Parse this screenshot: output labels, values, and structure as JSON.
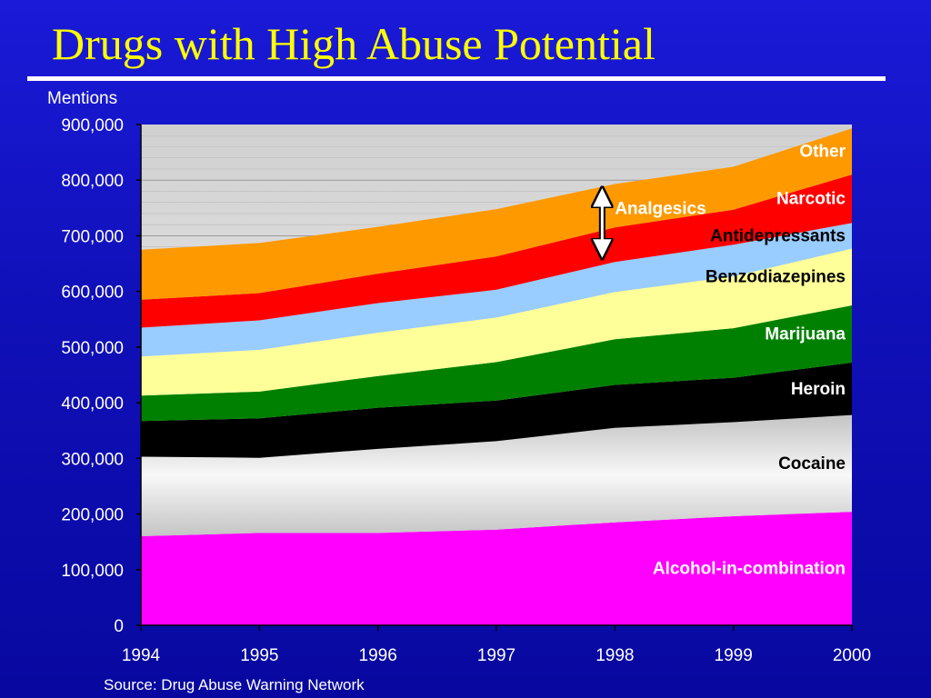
{
  "title": "Drugs with High Abuse Potential",
  "source": "Source:  Drug Abuse Warning Network",
  "chart_data": {
    "type": "area",
    "stacked": true,
    "title": "Drugs with High Abuse Potential",
    "ylabel": "Mentions",
    "xlabel": "",
    "ylim": [
      0,
      900000
    ],
    "yticks": [
      0,
      100000,
      200000,
      300000,
      400000,
      500000,
      600000,
      700000,
      800000,
      900000
    ],
    "ytick_labels": [
      "0",
      "100,000",
      "200,000",
      "300,000",
      "400,000",
      "500,000",
      "600,000",
      "700,000",
      "800,000",
      "900,000"
    ],
    "x": [
      1994,
      1995,
      1996,
      1997,
      1998,
      1999,
      2000
    ],
    "x_labels": [
      "1994",
      "1995",
      "1996",
      "1997",
      "1998",
      "1999",
      "2000"
    ],
    "grid": true,
    "series": [
      {
        "name": "Alcohol-in-combination",
        "color": "#ff00ff",
        "label_color": "#ffffff",
        "values": [
          160000,
          166000,
          166000,
          172000,
          185000,
          196000,
          204000
        ]
      },
      {
        "name": "Cocaine",
        "color": "#e6e6e6",
        "label_color": "#000000",
        "values": [
          143000,
          135000,
          151000,
          159000,
          170000,
          169000,
          174000
        ]
      },
      {
        "name": "Heroin",
        "color": "#000000",
        "label_color": "#ffffff",
        "values": [
          64000,
          71000,
          74000,
          73000,
          77000,
          80000,
          94000
        ]
      },
      {
        "name": "Marijuana",
        "color": "#008000",
        "label_color": "#ffffff",
        "values": [
          46000,
          48000,
          57000,
          69000,
          82000,
          89000,
          103000
        ]
      },
      {
        "name": "Benzodiazepines",
        "color": "#ffff99",
        "label_color": "#000000",
        "values": [
          70000,
          75000,
          78000,
          80000,
          85000,
          93000,
          102000
        ]
      },
      {
        "name": "Antidepressants",
        "color": "#99ccff",
        "label_color": "#000000",
        "values": [
          52000,
          53000,
          53000,
          50000,
          54000,
          57000,
          46000
        ]
      },
      {
        "name": "Narcotic",
        "color": "#ff0000",
        "label_color": "#ffffff",
        "values": [
          50000,
          49000,
          53000,
          60000,
          62000,
          63000,
          87000
        ]
      },
      {
        "name": "Other",
        "color": "#ff9900",
        "label_color": "#ffffff",
        "values": [
          90000,
          90000,
          84000,
          85000,
          78000,
          77000,
          83000
        ]
      }
    ],
    "annotations": [
      {
        "text": "Analgesics",
        "bracket_series": [
          "Narcotic",
          "Other"
        ],
        "x": 1998
      }
    ]
  }
}
